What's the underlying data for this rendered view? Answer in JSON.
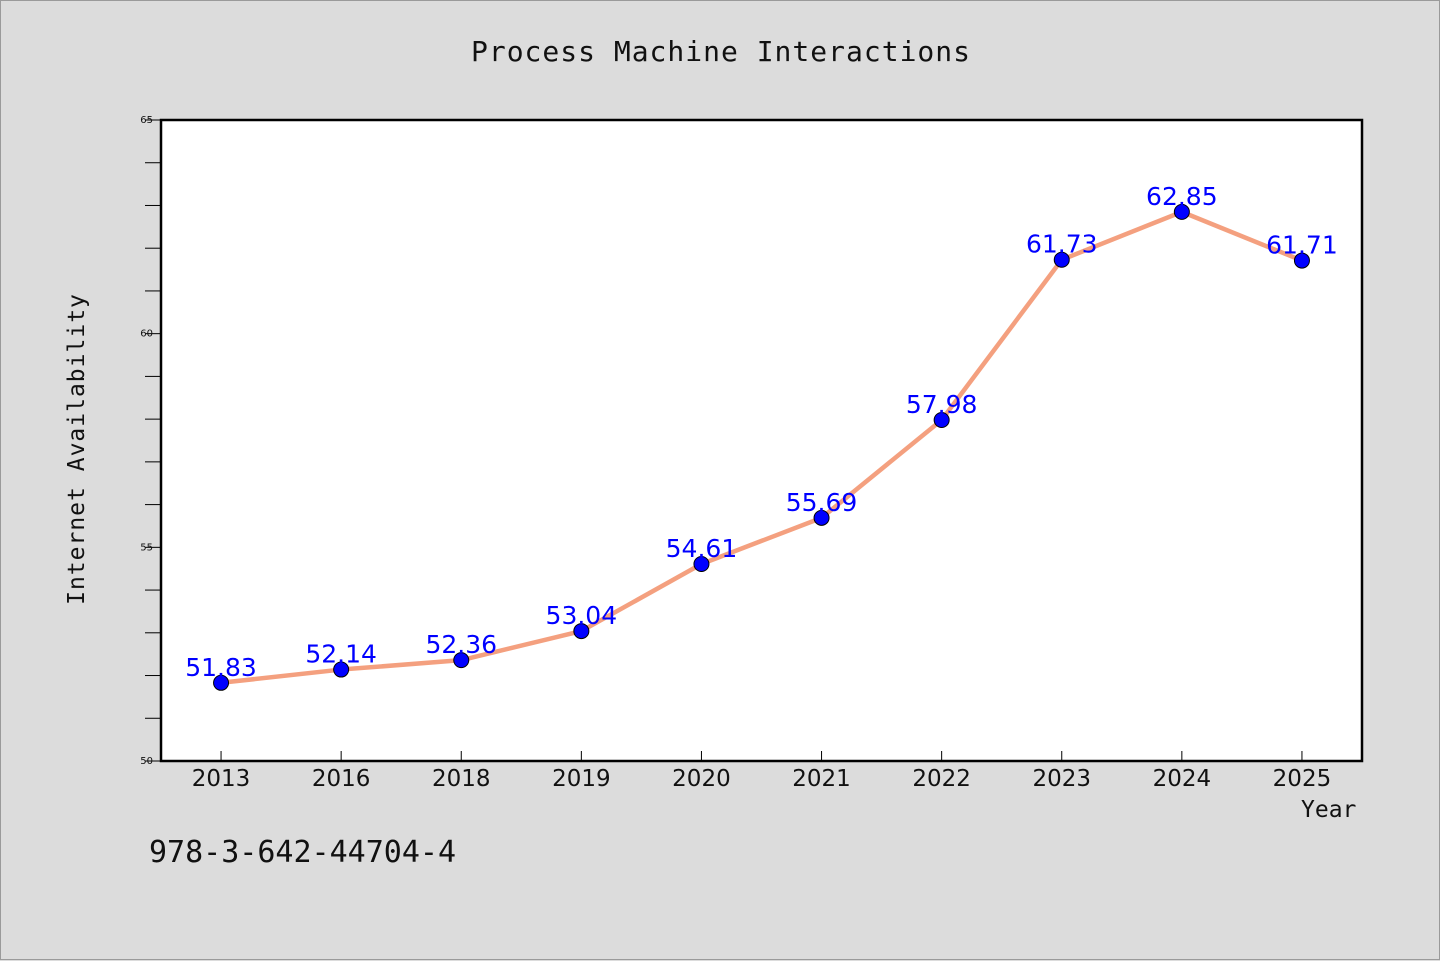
{
  "chart_data": {
    "type": "line",
    "title": "Process Machine Interactions",
    "xlabel": "Year",
    "ylabel": "Internet Availability",
    "categories": [
      "2013",
      "2016",
      "2018",
      "2019",
      "2020",
      "2021",
      "2022",
      "2023",
      "2024",
      "2025"
    ],
    "series": [
      {
        "values": [
          51.83,
          52.14,
          52.36,
          53.04,
          54.61,
          55.69,
          57.98,
          61.73,
          62.85,
          61.71
        ],
        "data_labels": [
          "51.83",
          "52.14",
          "52.36",
          "53.04",
          "54.61",
          "55.69",
          "57.98",
          "61.73",
          "62.85",
          "61.71"
        ],
        "line_color": "#f4a07f",
        "marker_color": "#0000ff"
      }
    ],
    "ylim": [
      50,
      65
    ],
    "yticks": [
      50,
      55,
      60,
      65
    ],
    "yticks_labels": [
      "50",
      "55",
      "60",
      "65"
    ],
    "grid": false,
    "legend": "none"
  },
  "footer": {
    "isbn": "978-3-642-44704-4"
  }
}
